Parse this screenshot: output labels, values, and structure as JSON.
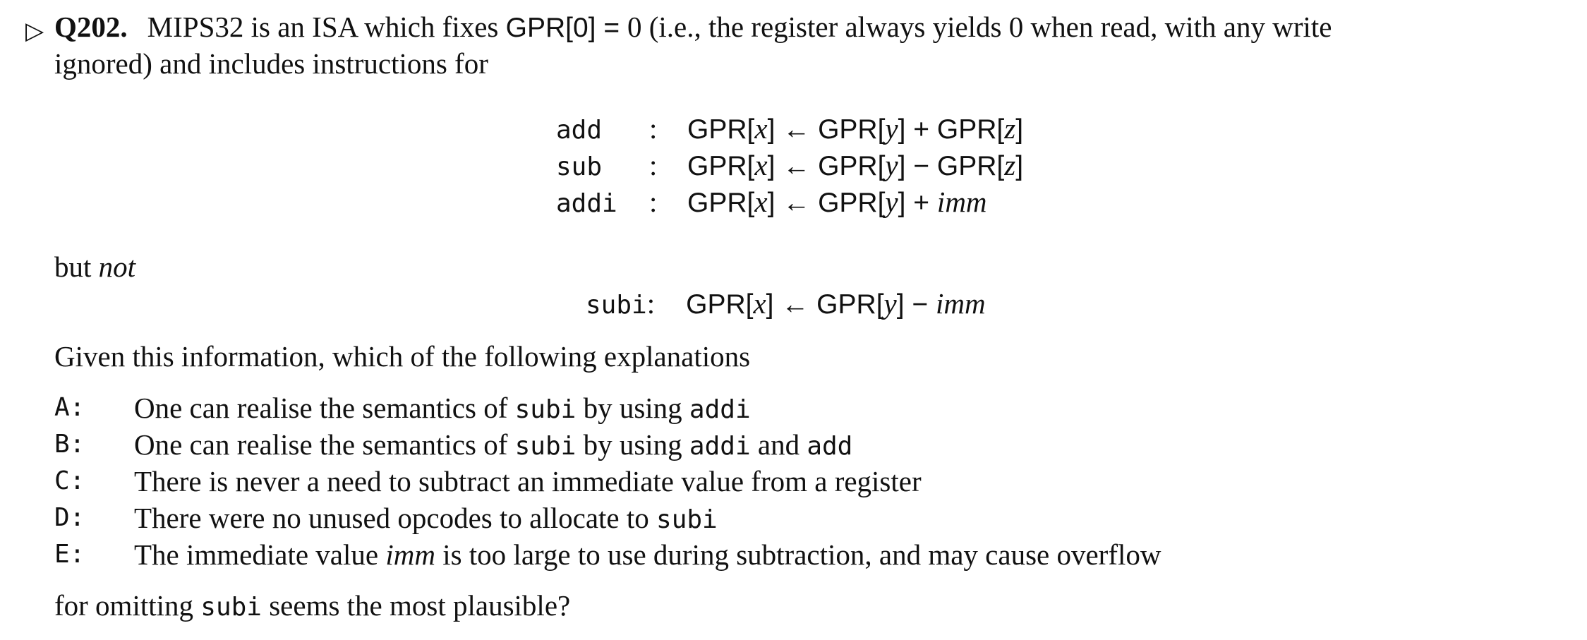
{
  "question": {
    "marker": "▷",
    "number": "Q202.",
    "intro_line1": {
      "p1": "MIPS32 is an ISA which fixes ",
      "gpr0": "GPR[0] = ",
      "p2": "0 (i.e., the register always yields 0 when read, with any write"
    },
    "intro_line2": "ignored) and includes instructions for",
    "instructions": [
      {
        "op": "add",
        "sep": ":",
        "lhs": "GPR[",
        "x": "x",
        "mid1": "] ← GPR[",
        "y": "y",
        "mid2": "] + GPR[",
        "z": "z",
        "end": "]"
      },
      {
        "op": "sub",
        "sep": ":",
        "lhs": "GPR[",
        "x": "x",
        "mid1": "] ← GPR[",
        "y": "y",
        "mid2": "] − GPR[",
        "z": "z",
        "end": "]"
      },
      {
        "op": "addi",
        "sep": ":",
        "lhs": "GPR[",
        "x": "x",
        "mid1": "] ← GPR[",
        "y": "y",
        "mid2": "] + ",
        "z": "imm",
        "end": ""
      }
    ],
    "but_not": {
      "but": "but ",
      "not": "not"
    },
    "excluded": {
      "op": "subi",
      "sep": ":",
      "lhs": "GPR[",
      "x": "x",
      "mid1": "] ← GPR[",
      "y": "y",
      "mid2": "] − ",
      "imm": "imm"
    },
    "prompt": "Given this information, which of the following explanations",
    "options": [
      {
        "letter": "A:",
        "t1": "One can realise the semantics of ",
        "c1": "subi",
        "t2": " by using ",
        "c2": "addi",
        "t3": "",
        "c3": ""
      },
      {
        "letter": "B:",
        "t1": "One can realise the semantics of ",
        "c1": "subi",
        "t2": " by using ",
        "c2": "addi",
        "t3": " and ",
        "c3": "add"
      },
      {
        "letter": "C:",
        "text": "There is never a need to subtract an immediate value from a register"
      },
      {
        "letter": "D:",
        "t1": "There were no unused opcodes to allocate to ",
        "c1": "subi"
      },
      {
        "letter": "E:",
        "t1": "The immediate value ",
        "it": "imm",
        "t2": " is too large to use during subtraction, and may cause overflow"
      }
    ],
    "closing": {
      "t1": "for omitting ",
      "c1": "subi",
      "t2": " seems the most plausible?"
    }
  }
}
